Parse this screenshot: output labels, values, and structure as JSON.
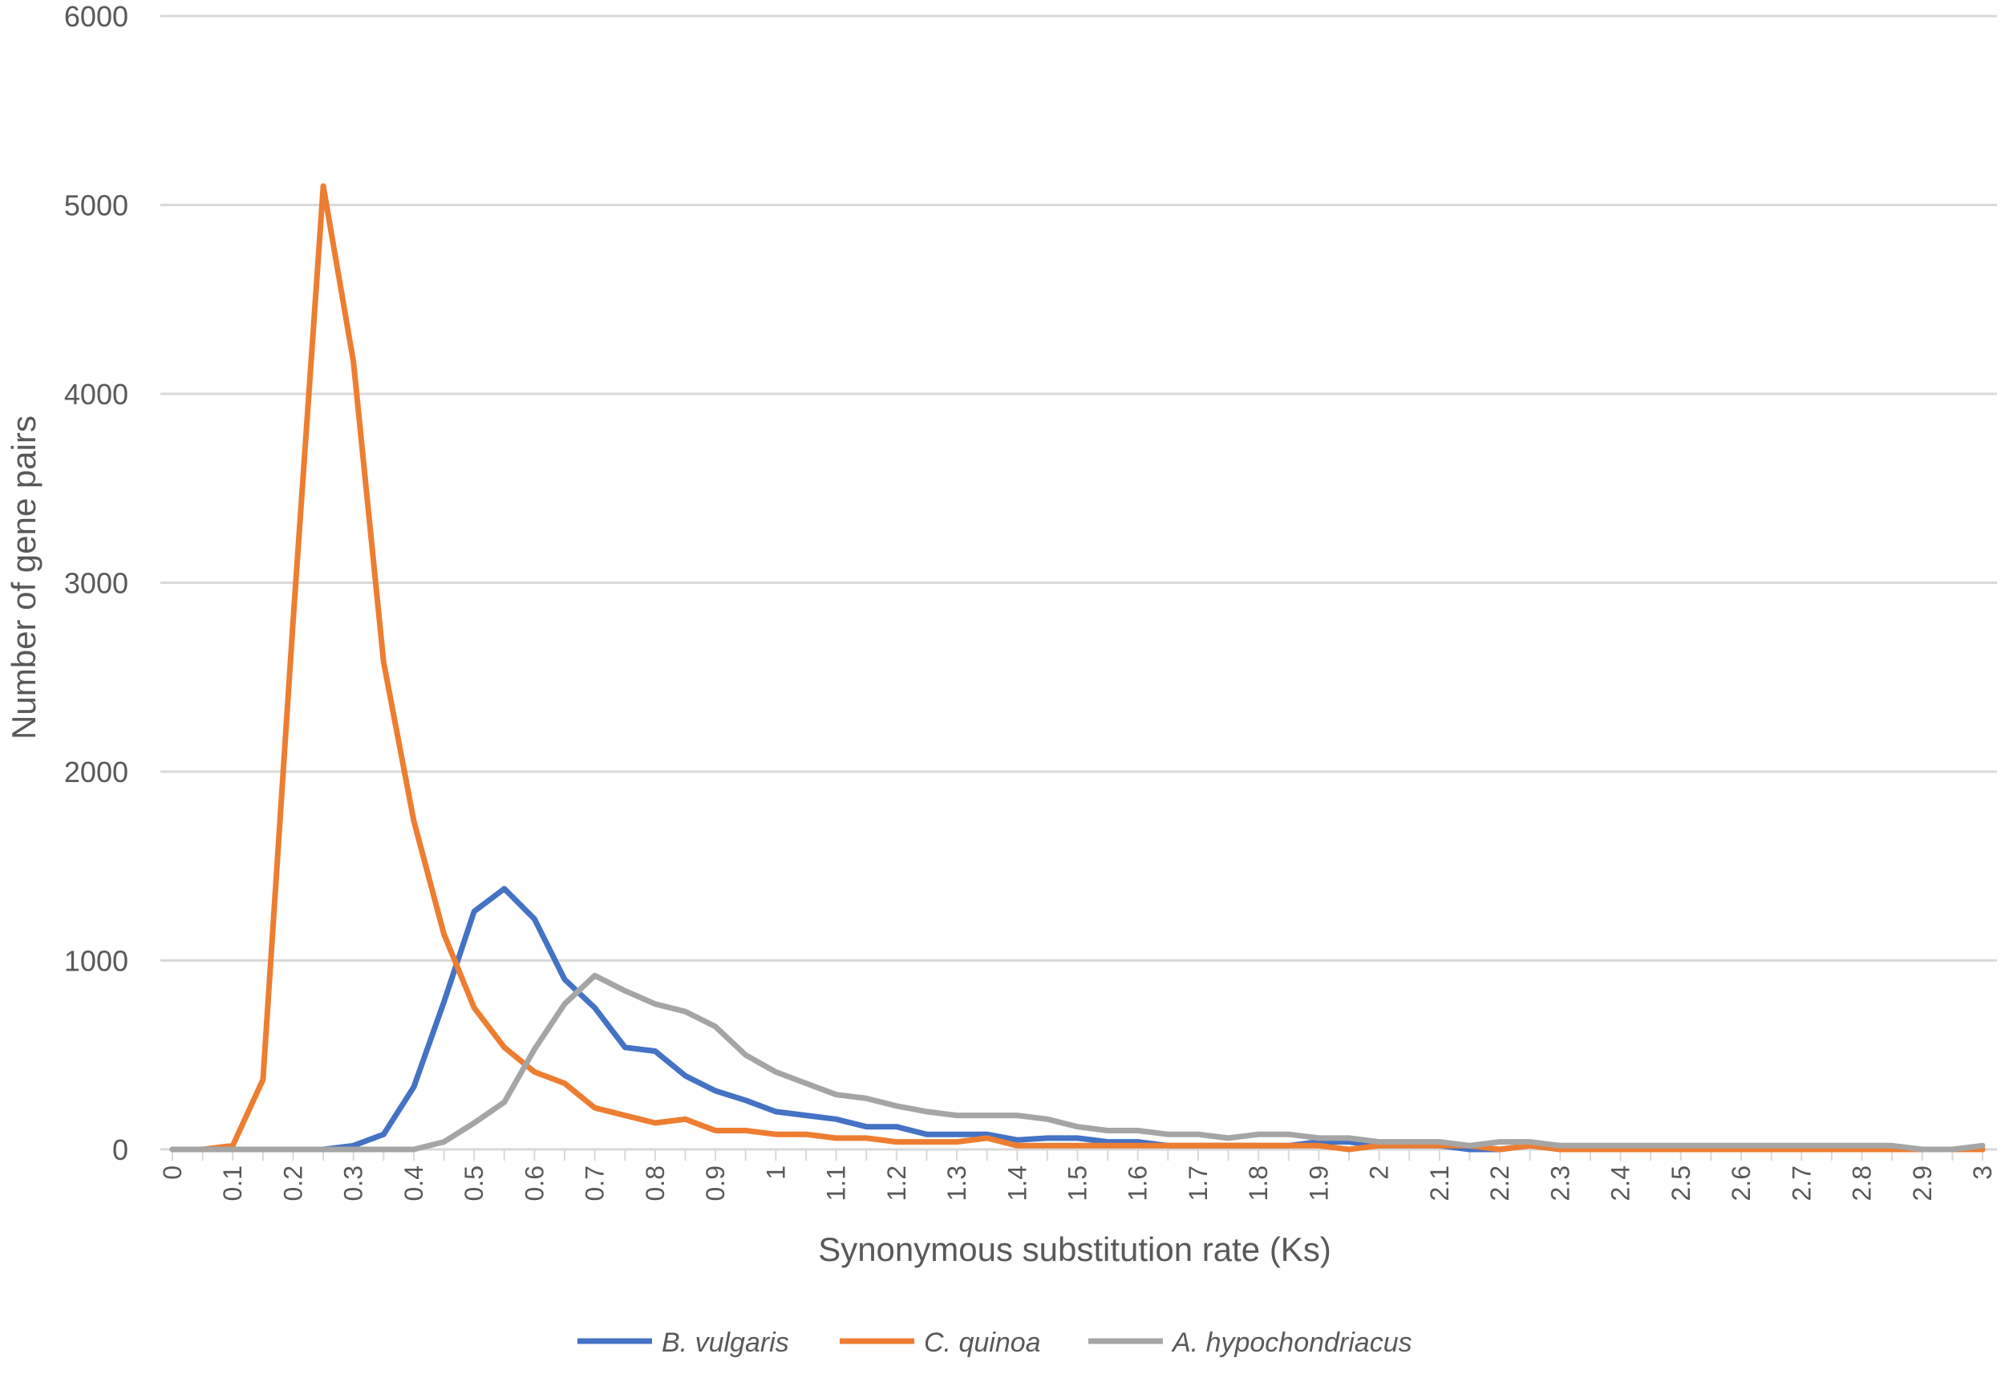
{
  "chart_data": {
    "type": "line",
    "xlabel": "Synonymous substitution rate (Ks)",
    "ylabel": "Number of gene pairs",
    "ylim": [
      0,
      6000
    ],
    "yticks": [
      0,
      1000,
      2000,
      3000,
      4000,
      5000,
      6000
    ],
    "grid": "horizontal",
    "legend_position": "bottom",
    "x": [
      0,
      0.05,
      0.1,
      0.15,
      0.2,
      0.25,
      0.3,
      0.35,
      0.4,
      0.45,
      0.5,
      0.55,
      0.6,
      0.65,
      0.7,
      0.75,
      0.8,
      0.85,
      0.9,
      0.95,
      1,
      1.05,
      1.1,
      1.15,
      1.2,
      1.25,
      1.3,
      1.35,
      1.4,
      1.45,
      1.5,
      1.55,
      1.6,
      1.65,
      1.7,
      1.75,
      1.8,
      1.85,
      1.9,
      1.95,
      2,
      2.05,
      2.1,
      2.15,
      2.2,
      2.25,
      2.3,
      2.35,
      2.4,
      2.45,
      2.5,
      2.55,
      2.6,
      2.65,
      2.7,
      2.75,
      2.8,
      2.85,
      2.9,
      2.95,
      3
    ],
    "x_tick_labels": [
      "0",
      "0.1",
      "0.2",
      "0.3",
      "0.4",
      "0.5",
      "0.6",
      "0.7",
      "0.8",
      "0.9",
      "1",
      "1.1",
      "1.2",
      "1.3",
      "1.4",
      "1.5",
      "1.6",
      "1.7",
      "1.8",
      "1.9",
      "2",
      "2.1",
      "2.2",
      "2.3",
      "2.4",
      "2.5",
      "2.6",
      "2.7",
      "2.8",
      "2.9",
      "3"
    ],
    "series": [
      {
        "name": "B. vulgaris",
        "color": "#4472C4",
        "values": [
          0,
          0,
          0,
          0,
          0,
          0,
          20,
          80,
          330,
          780,
          1260,
          1380,
          1220,
          900,
          750,
          540,
          520,
          390,
          310,
          260,
          200,
          180,
          160,
          120,
          120,
          80,
          80,
          80,
          50,
          60,
          60,
          40,
          40,
          20,
          20,
          20,
          20,
          20,
          40,
          40,
          20,
          20,
          20,
          0,
          0,
          20,
          0,
          0,
          0,
          0,
          0,
          0,
          0,
          0,
          0,
          0,
          0,
          0,
          0,
          0,
          0
        ]
      },
      {
        "name": "C. quinoa",
        "color": "#ED7D31",
        "values": [
          0,
          0,
          20,
          370,
          2800,
          5100,
          4170,
          2580,
          1740,
          1140,
          750,
          540,
          410,
          350,
          220,
          180,
          140,
          160,
          100,
          100,
          80,
          80,
          60,
          60,
          40,
          40,
          40,
          60,
          20,
          20,
          20,
          20,
          20,
          20,
          20,
          20,
          20,
          20,
          20,
          0,
          20,
          20,
          20,
          20,
          0,
          20,
          0,
          0,
          0,
          0,
          0,
          0,
          0,
          0,
          0,
          0,
          0,
          0,
          0,
          0,
          0
        ]
      },
      {
        "name": "A. hypochondriacus",
        "color": "#A5A5A5",
        "values": [
          0,
          0,
          0,
          0,
          0,
          0,
          0,
          0,
          0,
          40,
          140,
          250,
          530,
          770,
          920,
          840,
          770,
          730,
          650,
          500,
          410,
          350,
          290,
          270,
          230,
          200,
          180,
          180,
          180,
          160,
          120,
          100,
          100,
          80,
          80,
          60,
          80,
          80,
          60,
          60,
          40,
          40,
          40,
          20,
          40,
          40,
          20,
          20,
          20,
          20,
          20,
          20,
          20,
          20,
          20,
          20,
          20,
          20,
          0,
          0,
          20
        ]
      }
    ]
  }
}
